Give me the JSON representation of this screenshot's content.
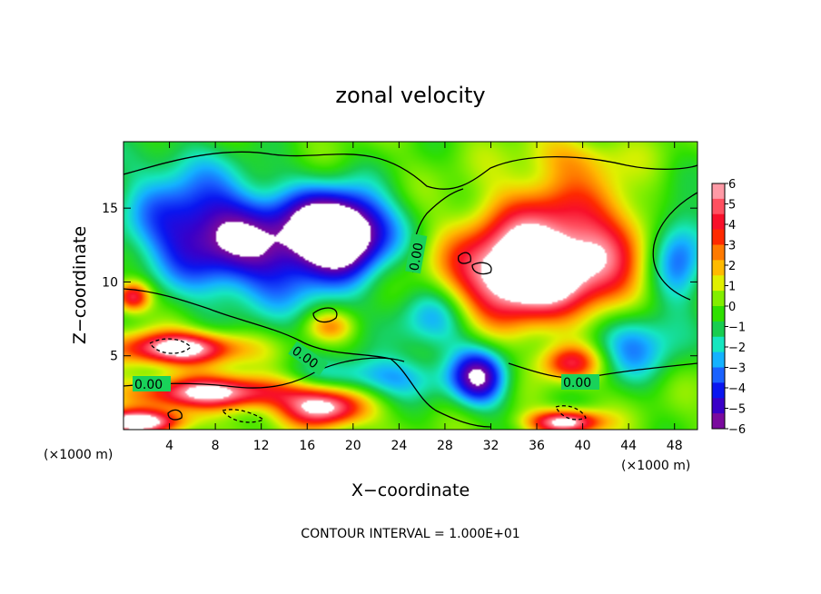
{
  "chart_data": {
    "type": "heatmap",
    "title": "zonal velocity",
    "xlabel": "X−coordinate",
    "ylabel": "Z−coordinate",
    "x_unit_left": "(×1000 m)",
    "x_unit_right": "(×1000 m)",
    "xlim": [
      0,
      50
    ],
    "ylim": [
      0,
      19.5
    ],
    "xticks": [
      "4",
      "8",
      "12",
      "16",
      "20",
      "24",
      "28",
      "32",
      "36",
      "40",
      "44",
      "48"
    ],
    "xtick_values": [
      4,
      8,
      12,
      16,
      20,
      24,
      28,
      32,
      36,
      40,
      44,
      48
    ],
    "yticks": [
      "5",
      "10",
      "15"
    ],
    "ytick_values": [
      5,
      10,
      15
    ],
    "colorbar": {
      "min": -6,
      "max": 6,
      "labels": [
        "6",
        "5",
        "4",
        "3",
        "2",
        "1",
        "0",
        "−1",
        "−2",
        "−3",
        "−4",
        "−5",
        "−6"
      ],
      "label_values": [
        6,
        5,
        4,
        3,
        2,
        1,
        0,
        -1,
        -2,
        -3,
        -4,
        -5,
        -6
      ],
      "colors": [
        "#7a0a9e",
        "#3a00c8",
        "#0a16f0",
        "#1a62ff",
        "#14b2ff",
        "#15e6c0",
        "#18cd50",
        "#2fe000",
        "#82ee00",
        "#e0f000",
        "#ffba00",
        "#ff7a00",
        "#ff2a00",
        "#f8102a",
        "#ff5060",
        "#ff9aa6"
      ]
    },
    "contour_labels": [
      "0.00",
      "0.00",
      "0.00",
      "0.00"
    ],
    "footer": "CONTOUR INTERVAL = 1.000E+01",
    "field_features": [
      {
        "x": 19.0,
        "z": 13.5,
        "u": -7.5,
        "sx": 4.2,
        "sz": 2.6
      },
      {
        "x": 13.0,
        "z": 12.0,
        "u": -4.5,
        "sx": 8.0,
        "sz": 4.0
      },
      {
        "x": 6.0,
        "z": 14.0,
        "u": -4.0,
        "sx": 6.0,
        "sz": 3.5
      },
      {
        "x": 44.0,
        "z": 6.0,
        "u": -4.0,
        "sx": 4.0,
        "sz": 2.5
      },
      {
        "x": 22.0,
        "z": 3.5,
        "u": -3.0,
        "sx": 6.0,
        "sz": 1.5
      },
      {
        "x": 31.0,
        "z": 3.5,
        "u": -5.5,
        "sx": 2.5,
        "sz": 2.0
      },
      {
        "x": 27.0,
        "z": 7.5,
        "u": -3.0,
        "sx": 3.5,
        "sz": 2.5
      },
      {
        "x": 48.5,
        "z": 12.0,
        "u": -3.5,
        "sx": 2.5,
        "sz": 3.5
      },
      {
        "x": 3.5,
        "z": 18.5,
        "u": -1.0,
        "sx": 6.0,
        "sz": 2.0
      },
      {
        "x": 35.0,
        "z": 10.5,
        "u": 8.5,
        "sx": 6.5,
        "sz": 3.2
      },
      {
        "x": 38.0,
        "z": 14.0,
        "u": 3.5,
        "sx": 6.0,
        "sz": 3.5
      },
      {
        "x": 42.5,
        "z": 10.0,
        "u": 2.0,
        "sx": 3.0,
        "sz": 5.0
      },
      {
        "x": 8.0,
        "z": 2.5,
        "u": 6.5,
        "sx": 7.0,
        "sz": 1.1
      },
      {
        "x": 5.0,
        "z": 5.5,
        "u": 7.5,
        "sx": 5.0,
        "sz": 1.1
      },
      {
        "x": 17.5,
        "z": 1.5,
        "u": 6.5,
        "sx": 3.5,
        "sz": 1.3
      },
      {
        "x": 38.5,
        "z": 0.5,
        "u": 7.0,
        "sx": 3.0,
        "sz": 0.8
      },
      {
        "x": 1.0,
        "z": 0.5,
        "u": 7.5,
        "sx": 4.0,
        "sz": 0.8
      },
      {
        "x": 0.8,
        "z": 9.0,
        "u": 5.5,
        "sx": 1.5,
        "sz": 1.0
      },
      {
        "x": 39.0,
        "z": 4.5,
        "u": 4.5,
        "sx": 2.5,
        "sz": 1.2
      },
      {
        "x": 18.0,
        "z": 7.0,
        "u": 2.5,
        "sx": 2.0,
        "sz": 1.0
      },
      {
        "x": 39.0,
        "z": 18.5,
        "u": 1.5,
        "sx": 4.0,
        "sz": 1.5
      }
    ]
  }
}
